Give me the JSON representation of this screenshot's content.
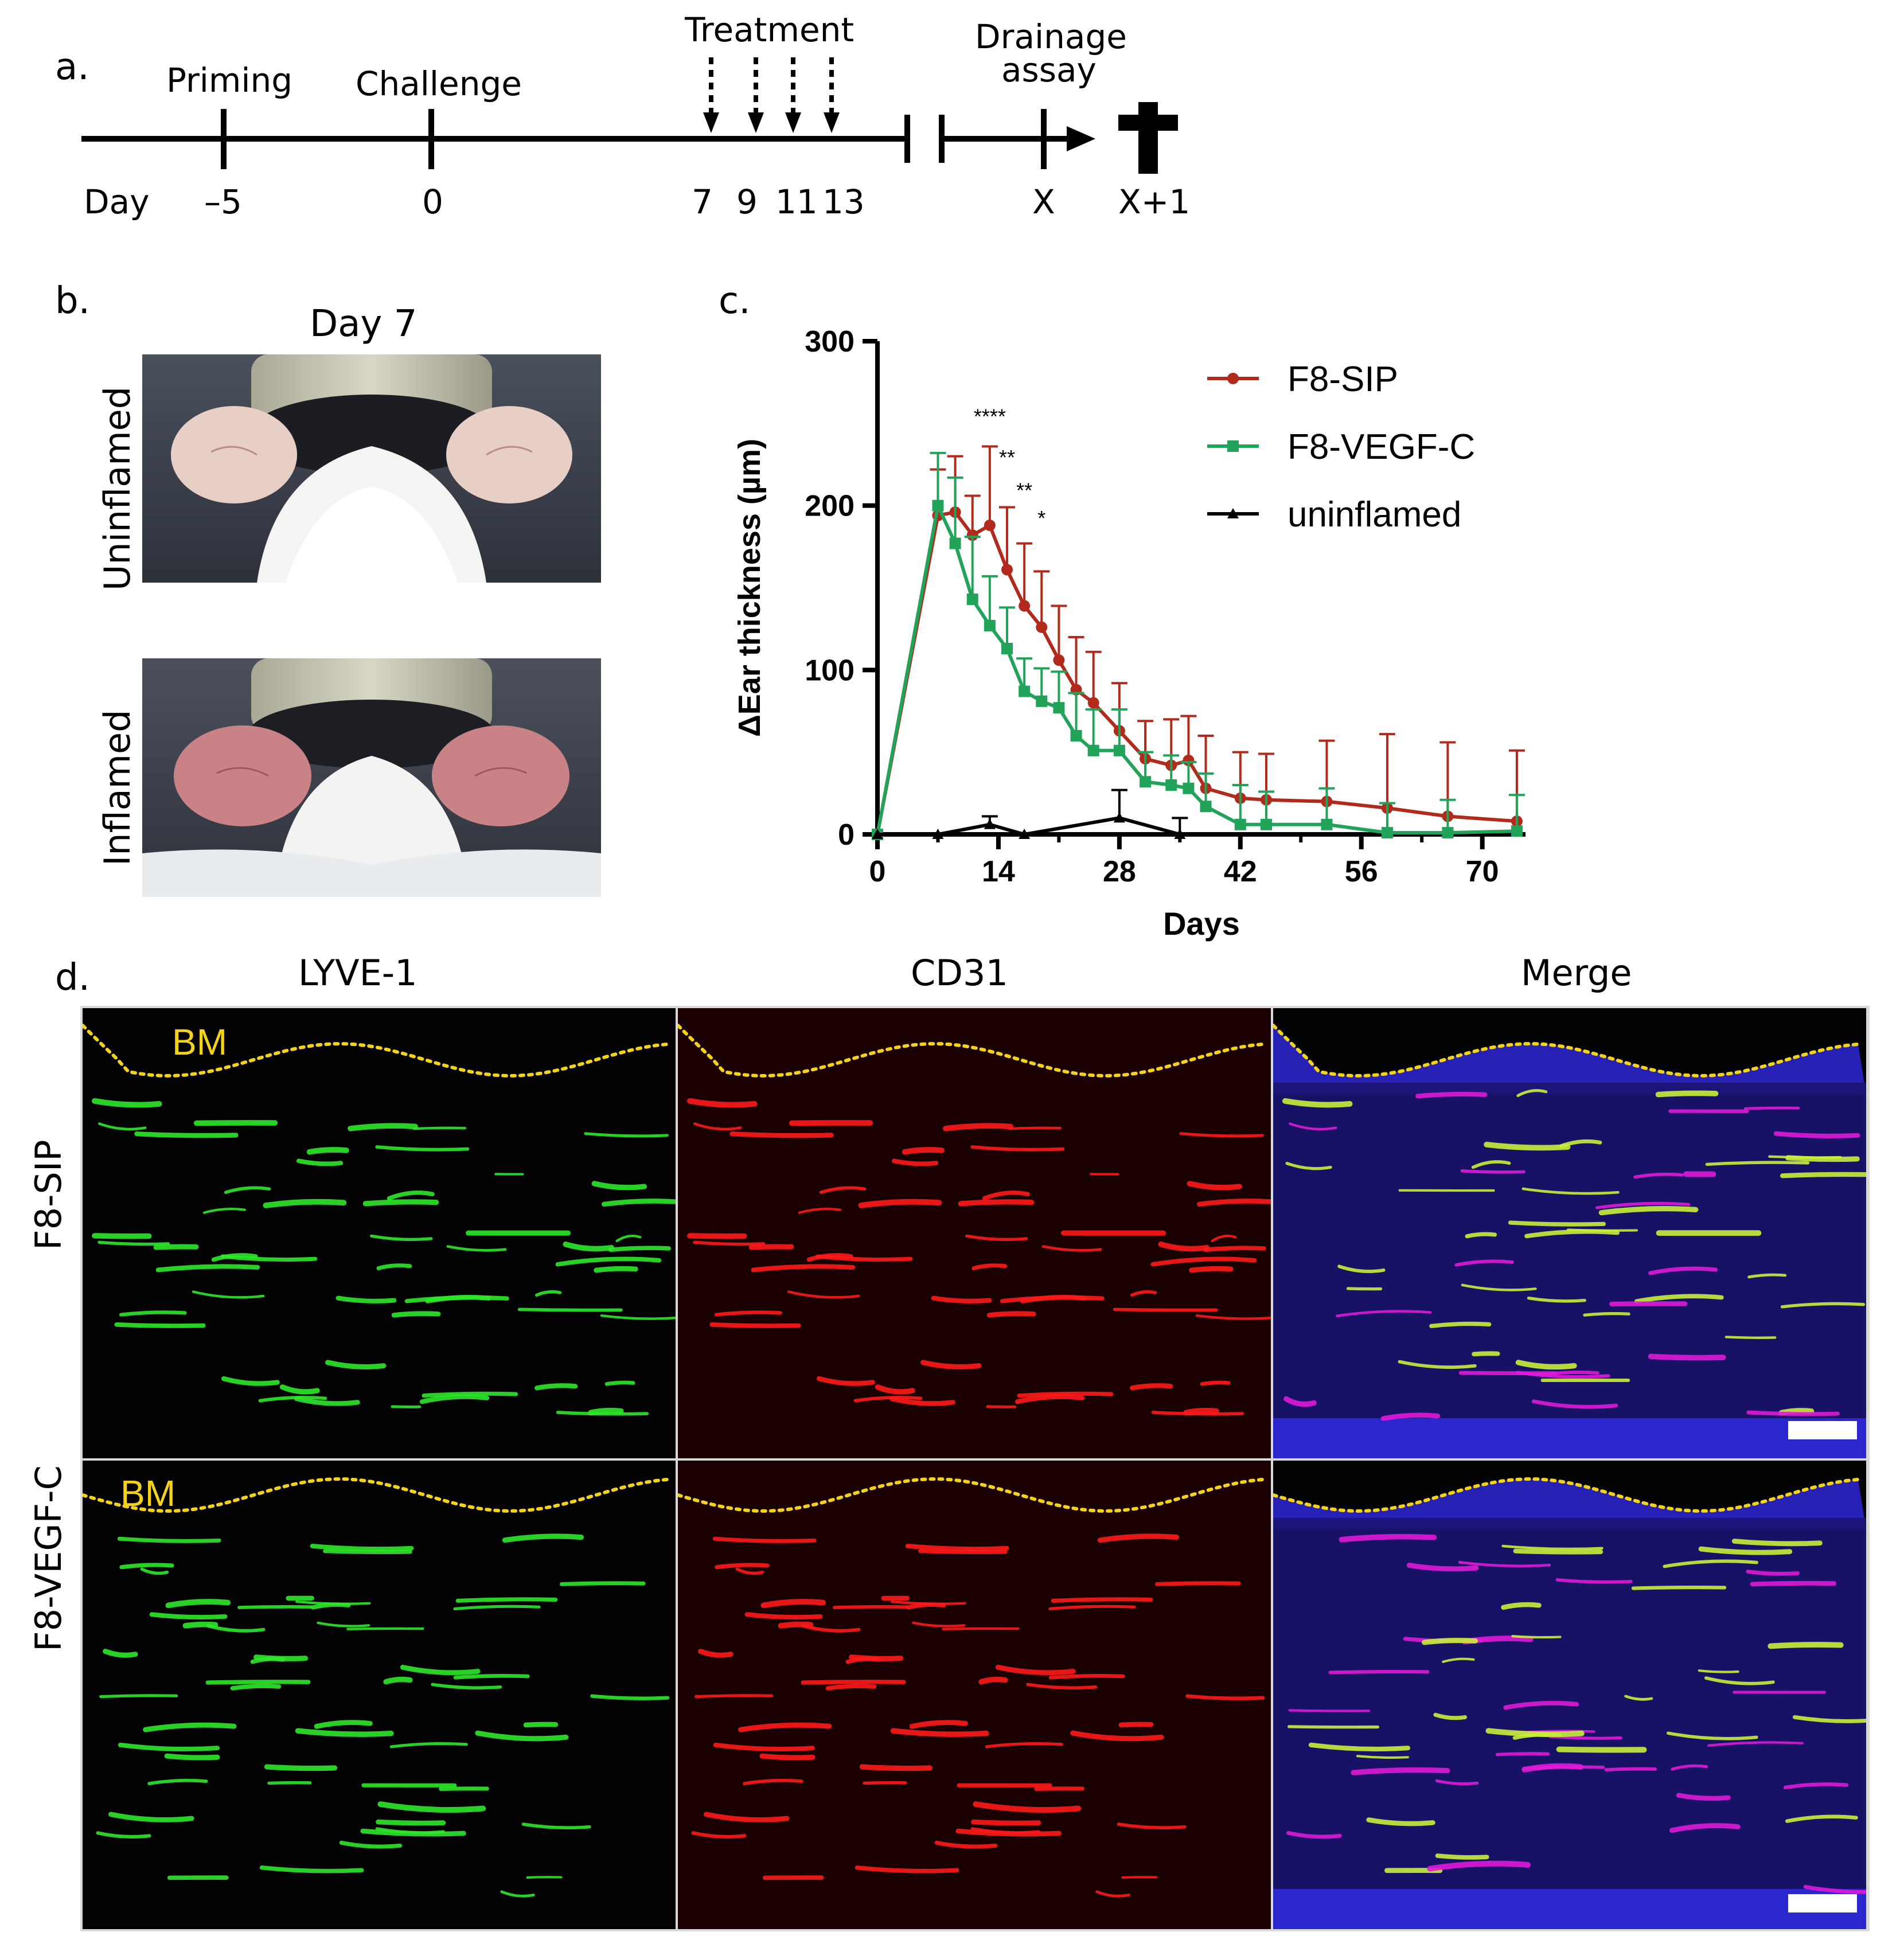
{
  "panel_a": {
    "letter": "a.",
    "day_label": "Day",
    "events": [
      {
        "label": "Priming",
        "day": "–5"
      },
      {
        "label": "Challenge",
        "day": "0"
      }
    ],
    "treatment_label": "Treatment",
    "treatment_days": [
      "7",
      "9",
      "11",
      "13"
    ],
    "drainage_label_1": "Drainage",
    "drainage_label_2": "assay",
    "drainage_day": "X",
    "end_day": "X+1"
  },
  "panel_b": {
    "letter": "b.",
    "title": "Day 7",
    "row_labels": [
      "Uninflamed",
      "Inflamed"
    ]
  },
  "panel_c": {
    "letter": "c."
  },
  "panel_d": {
    "letter": "d.",
    "col_labels": [
      "LYVE-1",
      "CD31",
      "Merge"
    ],
    "row_labels": [
      "F8-SIP",
      "F8-VEGF-C"
    ],
    "bm_label": "BM"
  },
  "colors": {
    "f8_sip": "#b22a1c",
    "f8_vegfc": "#22a35a",
    "uninflamed": "#000000",
    "bm_line": "#f2d21b"
  },
  "chart_data": {
    "type": "line",
    "ylabel": "ΔEar thickness (µm)",
    "xlabel": "Days",
    "xlim": [
      0,
      75
    ],
    "ylim": [
      0,
      300
    ],
    "xticks": [
      0,
      14,
      28,
      42,
      56,
      70
    ],
    "yticks": [
      0,
      100,
      200,
      300
    ],
    "legend_position": "top-right",
    "series": [
      {
        "name": "F8-SIP",
        "color": "#b22a1c",
        "marker": "circle",
        "x": [
          0,
          7,
          9,
          11,
          13,
          15,
          17,
          19,
          21,
          23,
          25,
          28,
          31,
          34,
          36,
          38,
          42,
          45,
          52,
          59,
          66,
          74
        ],
        "y": [
          0,
          194,
          196,
          182,
          188,
          161,
          139,
          126,
          106,
          88,
          80,
          63,
          46,
          42,
          45,
          28,
          22,
          21,
          20,
          16,
          11,
          8
        ],
        "err": [
          0,
          28,
          34,
          24,
          48,
          38,
          38,
          34,
          33,
          32,
          31,
          29,
          23,
          28,
          27,
          32,
          28,
          28,
          37,
          45,
          45,
          43
        ]
      },
      {
        "name": "F8-VEGF-C",
        "color": "#22a35a",
        "marker": "square",
        "x": [
          0,
          7,
          9,
          11,
          13,
          15,
          17,
          19,
          21,
          23,
          25,
          28,
          31,
          34,
          36,
          38,
          42,
          45,
          52,
          59,
          66,
          74
        ],
        "y": [
          0,
          200,
          177,
          143,
          127,
          113,
          87,
          81,
          77,
          60,
          51,
          51,
          32,
          30,
          28,
          17,
          6,
          6,
          6,
          1,
          1,
          2
        ],
        "err": [
          0,
          32,
          40,
          38,
          30,
          25,
          20,
          20,
          22,
          26,
          25,
          25,
          18,
          18,
          16,
          20,
          24,
          20,
          22,
          18,
          20,
          22
        ]
      },
      {
        "name": "uninflamed",
        "color": "#000000",
        "marker": "triangle",
        "x": [
          0,
          7,
          13,
          17,
          28,
          35
        ],
        "y": [
          0,
          0,
          6,
          0,
          10,
          0
        ],
        "err": [
          0,
          0,
          5,
          0,
          17,
          10
        ]
      }
    ],
    "annotations": [
      {
        "text": "****",
        "x": 13,
        "y": 250
      },
      {
        "text": "**",
        "x": 15,
        "y": 225
      },
      {
        "text": "**",
        "x": 17,
        "y": 205
      },
      {
        "text": "*",
        "x": 19,
        "y": 188
      }
    ]
  }
}
